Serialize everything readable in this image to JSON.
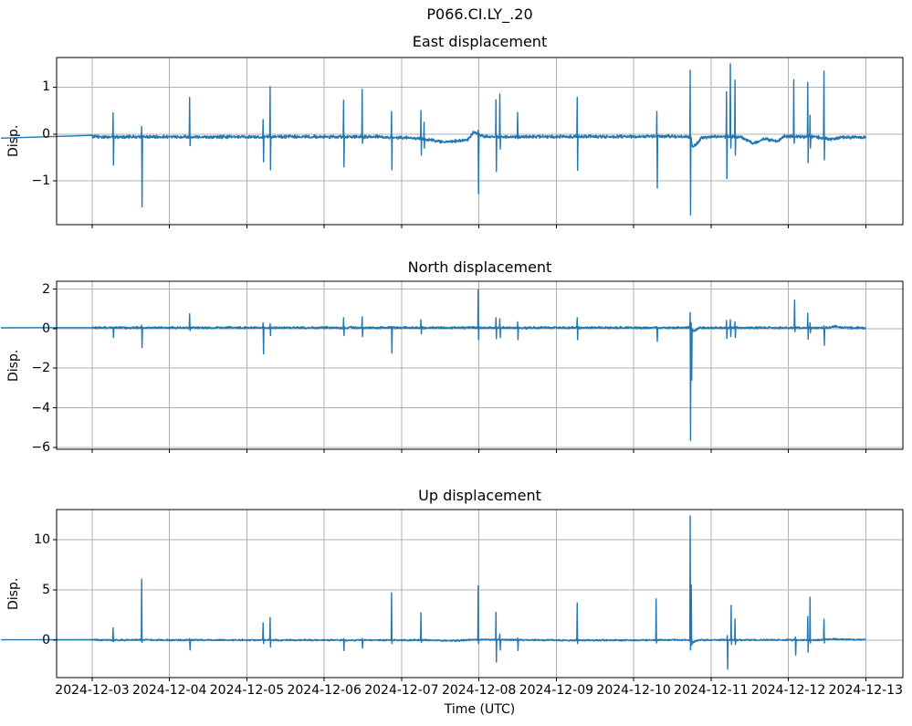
{
  "figure": {
    "suptitle": "P066.CI.LY_.20",
    "xlabel": "Time (UTC)",
    "background": "#ffffff",
    "line_color": "#1f77b4",
    "grid_color": "#b0b0b0",
    "spine_color": "#000000",
    "x_tick_labels": [
      "2024-12-03",
      "2024-12-04",
      "2024-12-05",
      "2024-12-06",
      "2024-12-07",
      "2024-12-08",
      "2024-12-09",
      "2024-12-10",
      "2024-12-11",
      "2024-12-12",
      "2024-12-13"
    ]
  },
  "chart_data": [
    {
      "type": "line",
      "title": "East displacement",
      "ylabel": "Disp.",
      "legend": null,
      "grid": true,
      "ylim": [
        -1.93,
        1.63
      ],
      "yticks": [
        {
          "value": 1,
          "label": "1"
        },
        {
          "value": 0,
          "label": "0"
        },
        {
          "value": -1,
          "label": "−1"
        }
      ],
      "x_unit": "days since 2024-12-03 00:00 (UTC)",
      "xlim_days": [
        -0.46,
        10.48
      ],
      "data_span_days": [
        0,
        10
      ],
      "noise_amplitude": 0.03,
      "baseline": [
        [
          0,
          -0.06
        ],
        [
          3.7,
          -0.06
        ],
        [
          4.2,
          -0.09
        ],
        [
          4.55,
          -0.17
        ],
        [
          4.85,
          -0.13
        ],
        [
          4.93,
          0.04
        ],
        [
          5.0,
          -0.02
        ],
        [
          5.1,
          -0.06
        ],
        [
          7.65,
          -0.05
        ],
        [
          7.74,
          -0.06
        ],
        [
          7.76,
          -0.3
        ],
        [
          7.88,
          -0.08
        ],
        [
          8.1,
          -0.05
        ],
        [
          8.4,
          -0.07
        ],
        [
          8.55,
          -0.2
        ],
        [
          8.7,
          -0.1
        ],
        [
          8.85,
          -0.16
        ],
        [
          8.95,
          -0.05
        ],
        [
          9.35,
          -0.06
        ],
        [
          9.55,
          -0.12
        ],
        [
          9.7,
          -0.07
        ],
        [
          10,
          -0.07
        ]
      ],
      "spikes": [
        [
          0.27,
          0.45,
          -0.66
        ],
        [
          0.64,
          0.16,
          -1.55
        ],
        [
          1.26,
          0.78,
          -0.25
        ],
        [
          2.21,
          0.31,
          -0.59
        ],
        [
          2.3,
          1.01,
          -0.76
        ],
        [
          3.25,
          0.72,
          -0.7
        ],
        [
          3.49,
          0.95,
          -0.2
        ],
        [
          3.87,
          0.48,
          -0.76
        ],
        [
          4.25,
          0.5,
          -0.45
        ],
        [
          4.29,
          0.25,
          -0.3
        ],
        [
          4.99,
          0.08,
          -1.27
        ],
        [
          5.22,
          0.73,
          -0.8
        ],
        [
          5.27,
          0.85,
          -0.32
        ],
        [
          5.5,
          0.46,
          -0.1
        ],
        [
          6.27,
          0.78,
          -0.77
        ],
        [
          7.3,
          0.48,
          -1.15
        ],
        [
          7.73,
          1.36,
          -1.72
        ],
        [
          8.2,
          0.9,
          -0.95
        ],
        [
          8.25,
          1.5,
          -0.3
        ],
        [
          8.31,
          1.15,
          -0.45
        ],
        [
          9.07,
          1.16,
          -0.2
        ],
        [
          9.25,
          1.1,
          -0.61
        ],
        [
          9.28,
          0.4,
          -0.3
        ],
        [
          9.46,
          1.34,
          -0.55
        ]
      ]
    },
    {
      "type": "line",
      "title": "North displacement",
      "ylabel": "Disp.",
      "legend": null,
      "grid": true,
      "ylim": [
        -6.1,
        2.4
      ],
      "yticks": [
        {
          "value": 2,
          "label": "2"
        },
        {
          "value": 0,
          "label": "0"
        },
        {
          "value": -2,
          "label": "−2"
        },
        {
          "value": -4,
          "label": "−4"
        },
        {
          "value": -6,
          "label": "−6"
        }
      ],
      "x_unit": "days since 2024-12-03 00:00 (UTC)",
      "xlim_days": [
        -0.46,
        10.48
      ],
      "data_span_days": [
        0,
        10
      ],
      "noise_amplitude": 0.05,
      "baseline": [
        [
          0,
          0.05
        ],
        [
          7.74,
          0.05
        ],
        [
          7.77,
          -0.12
        ],
        [
          7.86,
          0.05
        ],
        [
          9.5,
          0.04
        ],
        [
          9.6,
          0.12
        ],
        [
          9.7,
          0.05
        ],
        [
          10,
          0.04
        ]
      ],
      "spikes": [
        [
          0.27,
          0.05,
          -0.45
        ],
        [
          0.64,
          0.18,
          -0.95
        ],
        [
          1.26,
          0.75,
          -0.1
        ],
        [
          2.21,
          0.3,
          -1.27
        ],
        [
          2.3,
          0.25,
          -0.35
        ],
        [
          3.25,
          0.55,
          -0.35
        ],
        [
          3.49,
          0.6,
          -0.4
        ],
        [
          3.87,
          0.1,
          -1.23
        ],
        [
          4.25,
          0.45,
          -0.25
        ],
        [
          4.99,
          1.98,
          -0.55
        ],
        [
          5.22,
          0.55,
          -0.5
        ],
        [
          5.27,
          0.5,
          -0.45
        ],
        [
          5.5,
          0.35,
          -0.55
        ],
        [
          6.27,
          0.55,
          -0.55
        ],
        [
          7.3,
          0.1,
          -0.64
        ],
        [
          7.73,
          0.82,
          -5.65
        ],
        [
          7.745,
          0.3,
          -2.6
        ],
        [
          8.2,
          0.42,
          -0.49
        ],
        [
          8.25,
          0.45,
          -0.4
        ],
        [
          8.31,
          0.35,
          -0.45
        ],
        [
          9.08,
          1.45,
          -0.15
        ],
        [
          9.25,
          0.79,
          -0.53
        ],
        [
          9.28,
          0.3,
          -0.2
        ],
        [
          9.46,
          0.15,
          -0.84
        ]
      ]
    },
    {
      "type": "line",
      "title": "Up displacement",
      "ylabel": "Disp.",
      "legend": null,
      "grid": true,
      "ylim": [
        -3.75,
        13.0
      ],
      "yticks": [
        {
          "value": 10,
          "label": "10"
        },
        {
          "value": 5,
          "label": "5"
        },
        {
          "value": 0,
          "label": "0"
        }
      ],
      "x_unit": "days since 2024-12-03 00:00 (UTC)",
      "xlim_days": [
        -0.46,
        10.48
      ],
      "data_span_days": [
        0,
        10
      ],
      "noise_amplitude": 0.07,
      "baseline": [
        [
          0,
          0.0
        ],
        [
          4.4,
          -0.02
        ],
        [
          4.7,
          -0.08
        ],
        [
          4.95,
          0.05
        ],
        [
          5.3,
          0.02
        ],
        [
          6.2,
          -0.03
        ],
        [
          7.7,
          0.0
        ],
        [
          7.76,
          -0.25
        ],
        [
          7.85,
          0.0
        ],
        [
          9.4,
          0.0
        ],
        [
          9.55,
          0.1
        ],
        [
          9.75,
          0.04
        ],
        [
          10,
          0.04
        ]
      ],
      "spikes": [
        [
          0.27,
          1.2,
          -0.15
        ],
        [
          0.64,
          6.05,
          -0.25
        ],
        [
          1.26,
          0.15,
          -1.0
        ],
        [
          2.21,
          1.7,
          -0.35
        ],
        [
          2.3,
          2.25,
          -0.7
        ],
        [
          3.25,
          0.15,
          -1.05
        ],
        [
          3.49,
          0.15,
          -0.8
        ],
        [
          3.87,
          4.7,
          -0.35
        ],
        [
          4.25,
          2.7,
          -0.25
        ],
        [
          4.99,
          5.4,
          -0.35
        ],
        [
          5.22,
          2.75,
          -2.2
        ],
        [
          5.27,
          0.6,
          -1.0
        ],
        [
          5.5,
          0.2,
          -1.05
        ],
        [
          6.27,
          3.7,
          -0.35
        ],
        [
          7.29,
          4.1,
          -0.3
        ],
        [
          7.73,
          12.35,
          -1.0
        ],
        [
          7.745,
          5.5,
          -0.5
        ],
        [
          8.21,
          0.45,
          -2.9
        ],
        [
          8.26,
          3.45,
          -0.45
        ],
        [
          8.31,
          2.1,
          -0.45
        ],
        [
          9.09,
          0.3,
          -1.5
        ],
        [
          9.25,
          2.35,
          -1.2
        ],
        [
          9.28,
          4.25,
          -0.3
        ],
        [
          9.46,
          2.07,
          -0.3
        ]
      ]
    }
  ]
}
